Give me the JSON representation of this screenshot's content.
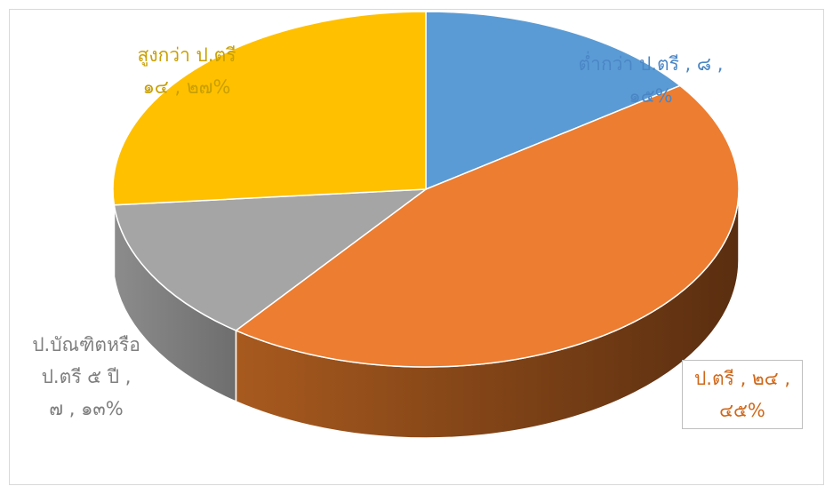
{
  "chart_data": {
    "type": "pie",
    "style": "3d",
    "series": [
      {
        "name": "",
        "categories": [
          "ต่ำกว่า ป.ตรี",
          "ป.ตรี",
          "ป.บัณฑิตหรือ ป.ตรี ๕ ปี",
          "สูงกว่า ป.ตรี"
        ],
        "values": [
          8,
          24,
          7,
          14
        ],
        "percent": [
          15,
          45,
          13,
          27
        ]
      }
    ],
    "slices": [
      {
        "label": "ต่ำกว่า ป.ตรี",
        "value": 8,
        "percent": 15,
        "color": "#5b9bd5",
        "side": "#3f6f9a"
      },
      {
        "label": "ป.ตรี",
        "value": 24,
        "percent": 45,
        "color": "#ed7d31",
        "side": "#8b4513"
      },
      {
        "label": "ป.บัณฑิตหรือ ป.ตรี ๕ ปี",
        "value": 7,
        "percent": 13,
        "color": "#a5a5a5",
        "side": "#7f7f7f"
      },
      {
        "label": "สูงกว่า ป.ตรี",
        "value": 14,
        "percent": 27,
        "color": "#ffc000",
        "side": "#b38600"
      }
    ],
    "data_labels": [
      "ต่ำกว่า ป.ตรี , ๘ ,\n๑๕%",
      "ป.ตรี , ๒๔ ,\n๔๕%",
      "ป.บัณฑิตหรือ\nป.ตรี ๕ ปี ,\n๗ , ๑๓%",
      "สูงกว่า ป.ตรี\n๑๔ , ๒๗%"
    ],
    "label_colors": [
      "#4a86c5",
      "#d0681a",
      "#7f7f7f",
      "#c9a000"
    ]
  }
}
